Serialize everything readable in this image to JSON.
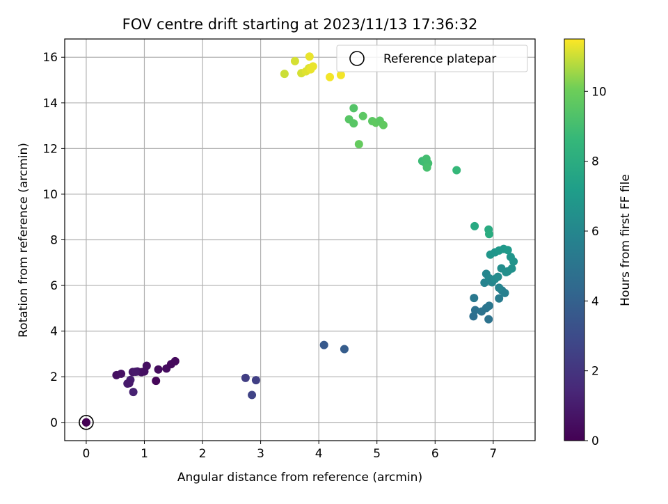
{
  "chart_data": {
    "type": "scatter",
    "title": "FOV centre drift starting at 2023/11/13 17:36:32",
    "xlabel": "Angular distance from reference (arcmin)",
    "ylabel": "Rotation from reference (arcmin)",
    "xlim": [
      -0.37,
      7.72
    ],
    "ylim": [
      -0.8,
      16.8
    ],
    "xticks": [
      0,
      1,
      2,
      3,
      4,
      5,
      6,
      7
    ],
    "yticks": [
      0,
      2,
      4,
      6,
      8,
      10,
      12,
      14,
      16
    ],
    "grid": true,
    "legend": {
      "position": "top-right",
      "entries": [
        "Reference platepar"
      ]
    },
    "colorbar": {
      "label": "Hours from first FF file",
      "range": [
        0,
        11.5
      ],
      "ticks": [
        0,
        2,
        4,
        6,
        8,
        10
      ],
      "colormap": "viridis"
    },
    "reference": {
      "x": 0,
      "y": 0,
      "c": 0,
      "marker": "open-circle"
    },
    "points": [
      {
        "x": 0.0,
        "y": 0.0,
        "c": 0.0
      },
      {
        "x": 0.52,
        "y": 2.07,
        "c": 0.5
      },
      {
        "x": 0.6,
        "y": 2.13,
        "c": 0.6
      },
      {
        "x": 0.71,
        "y": 1.7,
        "c": 1.0
      },
      {
        "x": 0.76,
        "y": 1.86,
        "c": 1.1
      },
      {
        "x": 0.8,
        "y": 2.21,
        "c": 0.8
      },
      {
        "x": 0.88,
        "y": 2.23,
        "c": 0.7
      },
      {
        "x": 0.95,
        "y": 2.2,
        "c": 0.6
      },
      {
        "x": 1.0,
        "y": 2.23,
        "c": 0.5
      },
      {
        "x": 1.04,
        "y": 2.48,
        "c": 0.5
      },
      {
        "x": 0.81,
        "y": 1.33,
        "c": 1.2
      },
      {
        "x": 0.74,
        "y": 1.72,
        "c": 0.9
      },
      {
        "x": 0.85,
        "y": 2.22,
        "c": 0.9
      },
      {
        "x": 1.2,
        "y": 1.82,
        "c": 0.2
      },
      {
        "x": 1.24,
        "y": 2.32,
        "c": 0.4
      },
      {
        "x": 1.38,
        "y": 2.36,
        "c": 0.4
      },
      {
        "x": 1.46,
        "y": 2.55,
        "c": 0.3
      },
      {
        "x": 1.53,
        "y": 2.68,
        "c": 0.3
      },
      {
        "x": 2.74,
        "y": 1.95,
        "c": 2.4
      },
      {
        "x": 2.92,
        "y": 1.85,
        "c": 2.5
      },
      {
        "x": 2.85,
        "y": 1.2,
        "c": 2.6
      },
      {
        "x": 4.09,
        "y": 3.39,
        "c": 3.6
      },
      {
        "x": 4.44,
        "y": 3.21,
        "c": 3.8
      },
      {
        "x": 6.66,
        "y": 4.65,
        "c": 4.7
      },
      {
        "x": 6.69,
        "y": 4.92,
        "c": 4.8
      },
      {
        "x": 6.8,
        "y": 4.86,
        "c": 4.9
      },
      {
        "x": 6.88,
        "y": 5.01,
        "c": 5.0
      },
      {
        "x": 6.92,
        "y": 4.52,
        "c": 4.9
      },
      {
        "x": 6.93,
        "y": 5.11,
        "c": 5.1
      },
      {
        "x": 6.67,
        "y": 5.45,
        "c": 5.2
      },
      {
        "x": 7.1,
        "y": 5.43,
        "c": 5.4
      },
      {
        "x": 7.15,
        "y": 5.78,
        "c": 5.5
      },
      {
        "x": 7.2,
        "y": 5.67,
        "c": 5.6
      },
      {
        "x": 6.85,
        "y": 6.12,
        "c": 5.8
      },
      {
        "x": 6.88,
        "y": 6.51,
        "c": 5.9
      },
      {
        "x": 6.93,
        "y": 6.32,
        "c": 6.0
      },
      {
        "x": 6.98,
        "y": 6.14,
        "c": 5.9
      },
      {
        "x": 7.03,
        "y": 6.28,
        "c": 6.1
      },
      {
        "x": 7.08,
        "y": 6.38,
        "c": 6.2
      },
      {
        "x": 7.1,
        "y": 5.9,
        "c": 5.8
      },
      {
        "x": 7.14,
        "y": 6.75,
        "c": 6.3
      },
      {
        "x": 7.22,
        "y": 6.58,
        "c": 6.4
      },
      {
        "x": 7.25,
        "y": 6.62,
        "c": 6.4
      },
      {
        "x": 7.32,
        "y": 6.74,
        "c": 6.5
      },
      {
        "x": 7.35,
        "y": 7.05,
        "c": 6.6
      },
      {
        "x": 7.3,
        "y": 7.25,
        "c": 6.7
      },
      {
        "x": 6.95,
        "y": 7.35,
        "c": 6.8
      },
      {
        "x": 7.03,
        "y": 7.45,
        "c": 6.7
      },
      {
        "x": 7.1,
        "y": 7.53,
        "c": 6.9
      },
      {
        "x": 7.18,
        "y": 7.6,
        "c": 6.9
      },
      {
        "x": 7.25,
        "y": 7.55,
        "c": 7.0
      },
      {
        "x": 6.68,
        "y": 8.6,
        "c": 7.8
      },
      {
        "x": 6.92,
        "y": 8.45,
        "c": 7.9
      },
      {
        "x": 6.93,
        "y": 8.25,
        "c": 8.0
      },
      {
        "x": 6.37,
        "y": 11.05,
        "c": 8.6
      },
      {
        "x": 5.78,
        "y": 11.45,
        "c": 8.8
      },
      {
        "x": 5.82,
        "y": 11.4,
        "c": 8.9
      },
      {
        "x": 5.85,
        "y": 11.55,
        "c": 9.0
      },
      {
        "x": 5.88,
        "y": 11.35,
        "c": 9.0
      },
      {
        "x": 5.86,
        "y": 11.17,
        "c": 9.1
      },
      {
        "x": 4.6,
        "y": 13.77,
        "c": 9.4
      },
      {
        "x": 4.52,
        "y": 13.28,
        "c": 9.5
      },
      {
        "x": 4.6,
        "y": 13.1,
        "c": 9.5
      },
      {
        "x": 4.76,
        "y": 13.42,
        "c": 9.6
      },
      {
        "x": 4.92,
        "y": 13.2,
        "c": 9.6
      },
      {
        "x": 4.98,
        "y": 13.13,
        "c": 9.7
      },
      {
        "x": 5.05,
        "y": 13.22,
        "c": 9.6
      },
      {
        "x": 5.11,
        "y": 13.03,
        "c": 9.7
      },
      {
        "x": 4.69,
        "y": 12.19,
        "c": 9.8
      },
      {
        "x": 3.41,
        "y": 15.27,
        "c": 11.0
      },
      {
        "x": 3.59,
        "y": 15.83,
        "c": 11.1
      },
      {
        "x": 3.7,
        "y": 15.3,
        "c": 11.1
      },
      {
        "x": 3.78,
        "y": 15.38,
        "c": 11.2
      },
      {
        "x": 3.83,
        "y": 15.52,
        "c": 11.2
      },
      {
        "x": 3.86,
        "y": 15.47,
        "c": 11.3
      },
      {
        "x": 3.9,
        "y": 15.6,
        "c": 11.3
      },
      {
        "x": 3.84,
        "y": 16.03,
        "c": 11.3
      },
      {
        "x": 4.19,
        "y": 15.13,
        "c": 11.4
      },
      {
        "x": 4.38,
        "y": 15.22,
        "c": 11.4
      }
    ]
  }
}
